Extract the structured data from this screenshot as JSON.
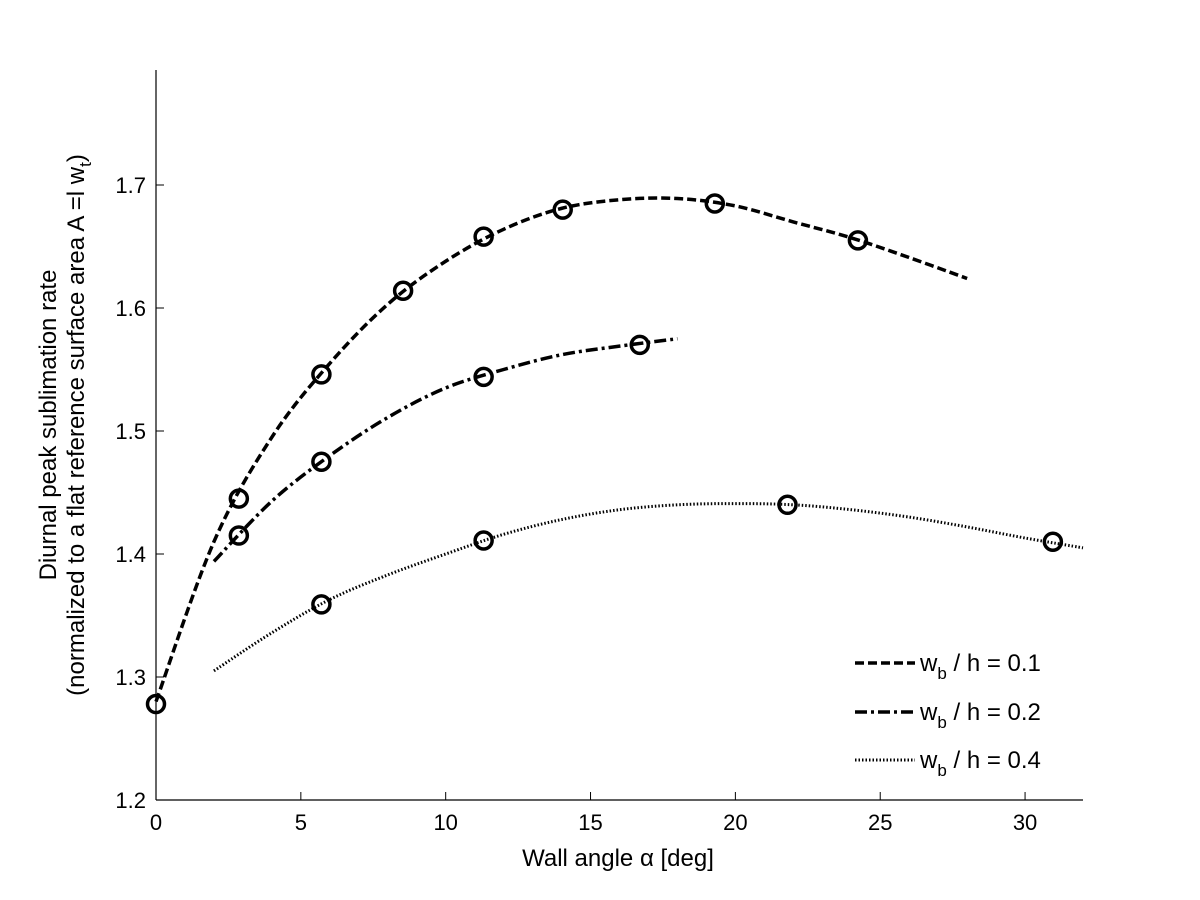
{
  "chart_data": {
    "type": "line",
    "xlabel": "Wall angle α [deg]",
    "ylabel_line1": "Diurnal peak sublimation rate",
    "ylabel_line2_prefix": "(normalized to a flat reference surface area A =l w",
    "ylabel_line2_sub": "t",
    "ylabel_line2_suffix": ")",
    "xlim": [
      0,
      32
    ],
    "ylim": [
      1.2,
      1.8
    ],
    "xticks": [
      0,
      5,
      10,
      15,
      20,
      25,
      30
    ],
    "yticks": [
      1.2,
      1.3,
      1.4,
      1.5,
      1.6,
      1.7
    ],
    "xtick_labels": [
      "0",
      "5",
      "10",
      "15",
      "20",
      "25",
      "30"
    ],
    "ytick_labels": [
      "1.2",
      "1.3",
      "1.4",
      "1.5",
      "1.6",
      "1.7"
    ],
    "grid": false,
    "legend_position": "bottom-right",
    "series": [
      {
        "legend_main": "w",
        "legend_sub": "b",
        "legend_rest": " / h = 0.1",
        "dash": "dashed",
        "curve_x": [
          0,
          2,
          4,
          6,
          8,
          10,
          12,
          14,
          16,
          18,
          20,
          22,
          24,
          26,
          28
        ],
        "curve_y": [
          1.28,
          1.41,
          1.495,
          1.555,
          1.603,
          1.638,
          1.664,
          1.681,
          1.688,
          1.689,
          1.683,
          1.67,
          1.657,
          1.641,
          1.624
        ],
        "markers_x": [
          0,
          2.86,
          5.71,
          8.53,
          11.31,
          14.04,
          19.29,
          24.23
        ],
        "markers_y": [
          1.278,
          1.445,
          1.546,
          1.614,
          1.658,
          1.68,
          1.685,
          1.655
        ]
      },
      {
        "legend_main": "w",
        "legend_sub": "b",
        "legend_rest": " / h = 0.2",
        "dash": "dashdot",
        "curve_x": [
          2,
          4,
          6,
          8,
          10,
          12,
          14,
          16,
          18
        ],
        "curve_y": [
          1.394,
          1.443,
          1.48,
          1.511,
          1.535,
          1.55,
          1.562,
          1.569,
          1.575
        ],
        "markers_x": [
          2.86,
          5.71,
          11.31,
          16.7
        ],
        "markers_y": [
          1.415,
          1.475,
          1.544,
          1.57
        ]
      },
      {
        "legend_main": "w",
        "legend_sub": "b",
        "legend_rest": " / h = 0.4",
        "dash": "dotted",
        "curve_x": [
          2,
          4,
          6,
          8,
          10,
          12,
          14,
          16,
          18,
          20,
          22,
          24,
          26,
          28,
          30,
          32
        ],
        "curve_y": [
          1.305,
          1.336,
          1.363,
          1.383,
          1.4,
          1.416,
          1.428,
          1.436,
          1.44,
          1.441,
          1.44,
          1.436,
          1.43,
          1.422,
          1.413,
          1.405
        ],
        "markers_x": [
          5.71,
          11.31,
          21.8,
          30.96
        ],
        "markers_y": [
          1.359,
          1.411,
          1.44,
          1.41
        ]
      }
    ]
  }
}
